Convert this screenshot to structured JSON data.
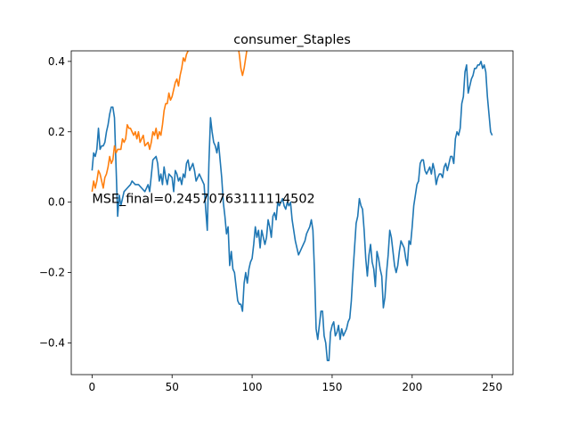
{
  "chart_data": {
    "type": "line",
    "title": "consumer_Staples",
    "xlabel": "",
    "ylabel": "",
    "xlim": [
      -13,
      263
    ],
    "ylim": [
      -0.49,
      0.43
    ],
    "xticks": [
      0,
      50,
      100,
      150,
      200,
      250
    ],
    "yticks": [
      -0.4,
      -0.2,
      0.0,
      0.2,
      0.4
    ],
    "xtick_labels": [
      "0",
      "50",
      "100",
      "150",
      "200",
      "250"
    ],
    "ytick_labels": [
      "−0.4",
      "−0.2",
      "0.0",
      "0.2",
      "0.4"
    ],
    "grid": false,
    "annotation": {
      "text": "MSE_final=0.24570763111114502",
      "x": 0,
      "y": 0.0
    },
    "series": [
      {
        "color": "#1f77b4",
        "points": [
          [
            0,
            0.09
          ],
          [
            1,
            0.14
          ],
          [
            2,
            0.13
          ],
          [
            3,
            0.15
          ],
          [
            4,
            0.21
          ],
          [
            5,
            0.15
          ],
          [
            6,
            0.16
          ],
          [
            7,
            0.16
          ],
          [
            8,
            0.17
          ],
          [
            9,
            0.2
          ],
          [
            10,
            0.22
          ],
          [
            11,
            0.25
          ],
          [
            12,
            0.27
          ],
          [
            13,
            0.27
          ],
          [
            14,
            0.24
          ],
          [
            15,
            0.1
          ],
          [
            16,
            -0.04
          ],
          [
            17,
            0.02
          ],
          [
            18,
            -0.01
          ],
          [
            19,
            0.01
          ],
          [
            20,
            0.03
          ],
          [
            22,
            0.04
          ],
          [
            24,
            0.05
          ],
          [
            25,
            0.06
          ],
          [
            27,
            0.05
          ],
          [
            29,
            0.05
          ],
          [
            31,
            0.04
          ],
          [
            33,
            0.03
          ],
          [
            35,
            0.05
          ],
          [
            36,
            0.03
          ],
          [
            38,
            0.12
          ],
          [
            40,
            0.13
          ],
          [
            41,
            0.11
          ],
          [
            42,
            0.06
          ],
          [
            43,
            0.08
          ],
          [
            44,
            0.05
          ],
          [
            45,
            0.1
          ],
          [
            46,
            0.07
          ],
          [
            47,
            0.05
          ],
          [
            48,
            0.08
          ],
          [
            50,
            0.07
          ],
          [
            51,
            0.03
          ],
          [
            52,
            0.09
          ],
          [
            53,
            0.08
          ],
          [
            54,
            0.06
          ],
          [
            55,
            0.07
          ],
          [
            56,
            0.05
          ],
          [
            57,
            0.08
          ],
          [
            58,
            0.07
          ],
          [
            59,
            0.11
          ],
          [
            60,
            0.12
          ],
          [
            61,
            0.09
          ],
          [
            62,
            0.1
          ],
          [
            63,
            0.11
          ],
          [
            64,
            0.09
          ],
          [
            65,
            0.06
          ],
          [
            66,
            0.07
          ],
          [
            67,
            0.08
          ],
          [
            68,
            0.07
          ],
          [
            69,
            0.06
          ],
          [
            70,
            0.05
          ],
          [
            71,
            -0.02
          ],
          [
            72,
            -0.08
          ],
          [
            73,
            0.11
          ],
          [
            74,
            0.24
          ],
          [
            75,
            0.2
          ],
          [
            76,
            0.17
          ],
          [
            77,
            0.16
          ],
          [
            78,
            0.14
          ],
          [
            79,
            0.17
          ],
          [
            80,
            0.12
          ],
          [
            81,
            0.07
          ],
          [
            82,
            0.0
          ],
          [
            83,
            -0.04
          ],
          [
            84,
            -0.09
          ],
          [
            85,
            -0.07
          ],
          [
            86,
            -0.18
          ],
          [
            87,
            -0.14
          ],
          [
            88,
            -0.19
          ],
          [
            89,
            -0.2
          ],
          [
            90,
            -0.24
          ],
          [
            91,
            -0.28
          ],
          [
            92,
            -0.29
          ],
          [
            93,
            -0.29
          ],
          [
            94,
            -0.31
          ],
          [
            95,
            -0.23
          ],
          [
            96,
            -0.2
          ],
          [
            97,
            -0.23
          ],
          [
            98,
            -0.19
          ],
          [
            99,
            -0.17
          ],
          [
            100,
            -0.16
          ],
          [
            101,
            -0.12
          ],
          [
            102,
            -0.07
          ],
          [
            103,
            -0.1
          ],
          [
            104,
            -0.08
          ],
          [
            105,
            -0.13
          ],
          [
            106,
            -0.08
          ],
          [
            107,
            -0.1
          ],
          [
            108,
            -0.12
          ],
          [
            109,
            -0.1
          ],
          [
            110,
            -0.05
          ],
          [
            111,
            -0.07
          ],
          [
            112,
            -0.1
          ],
          [
            113,
            -0.04
          ],
          [
            114,
            -0.03
          ],
          [
            115,
            -0.05
          ],
          [
            116,
            0.0
          ],
          [
            117,
            -0.01
          ],
          [
            118,
            0.0
          ],
          [
            119,
            0.01
          ],
          [
            120,
            -0.01
          ],
          [
            121,
            -0.02
          ],
          [
            122,
            0.0
          ],
          [
            123,
            -0.01
          ],
          [
            124,
            0.0
          ],
          [
            125,
            -0.05
          ],
          [
            126,
            -0.08
          ],
          [
            127,
            -0.11
          ],
          [
            128,
            -0.13
          ],
          [
            129,
            -0.15
          ],
          [
            130,
            -0.14
          ],
          [
            131,
            -0.13
          ],
          [
            132,
            -0.12
          ],
          [
            133,
            -0.11
          ],
          [
            134,
            -0.09
          ],
          [
            135,
            -0.08
          ],
          [
            136,
            -0.07
          ],
          [
            137,
            -0.05
          ],
          [
            138,
            -0.08
          ],
          [
            139,
            -0.2
          ],
          [
            140,
            -0.36
          ],
          [
            141,
            -0.39
          ],
          [
            142,
            -0.35
          ],
          [
            143,
            -0.31
          ],
          [
            144,
            -0.31
          ],
          [
            145,
            -0.38
          ],
          [
            146,
            -0.4
          ],
          [
            147,
            -0.45
          ],
          [
            148,
            -0.45
          ],
          [
            149,
            -0.37
          ],
          [
            150,
            -0.35
          ],
          [
            151,
            -0.34
          ],
          [
            152,
            -0.38
          ],
          [
            153,
            -0.37
          ],
          [
            154,
            -0.35
          ],
          [
            155,
            -0.39
          ],
          [
            156,
            -0.36
          ],
          [
            157,
            -0.38
          ],
          [
            158,
            -0.37
          ],
          [
            159,
            -0.36
          ],
          [
            160,
            -0.34
          ],
          [
            161,
            -0.33
          ],
          [
            162,
            -0.28
          ],
          [
            163,
            -0.2
          ],
          [
            164,
            -0.13
          ],
          [
            165,
            -0.06
          ],
          [
            166,
            -0.04
          ],
          [
            167,
            0.01
          ],
          [
            168,
            -0.01
          ],
          [
            169,
            -0.02
          ],
          [
            170,
            -0.08
          ],
          [
            171,
            -0.16
          ],
          [
            172,
            -0.21
          ],
          [
            173,
            -0.15
          ],
          [
            174,
            -0.12
          ],
          [
            175,
            -0.17
          ],
          [
            176,
            -0.19
          ],
          [
            177,
            -0.24
          ],
          [
            178,
            -0.14
          ],
          [
            179,
            -0.16
          ],
          [
            180,
            -0.19
          ],
          [
            181,
            -0.21
          ],
          [
            182,
            -0.3
          ],
          [
            183,
            -0.27
          ],
          [
            184,
            -0.2
          ],
          [
            185,
            -0.15
          ],
          [
            186,
            -0.08
          ],
          [
            187,
            -0.1
          ],
          [
            188,
            -0.14
          ],
          [
            189,
            -0.18
          ],
          [
            190,
            -0.2
          ],
          [
            191,
            -0.18
          ],
          [
            192,
            -0.14
          ],
          [
            193,
            -0.11
          ],
          [
            194,
            -0.12
          ],
          [
            195,
            -0.13
          ],
          [
            196,
            -0.16
          ],
          [
            197,
            -0.18
          ],
          [
            198,
            -0.11
          ],
          [
            199,
            -0.12
          ],
          [
            200,
            -0.07
          ],
          [
            201,
            -0.01
          ],
          [
            202,
            0.02
          ],
          [
            203,
            0.05
          ],
          [
            204,
            0.06
          ],
          [
            205,
            0.11
          ],
          [
            206,
            0.12
          ],
          [
            207,
            0.12
          ],
          [
            208,
            0.09
          ],
          [
            209,
            0.08
          ],
          [
            210,
            0.09
          ],
          [
            211,
            0.1
          ],
          [
            212,
            0.08
          ],
          [
            213,
            0.11
          ],
          [
            214,
            0.09
          ],
          [
            215,
            0.05
          ],
          [
            216,
            0.07
          ],
          [
            217,
            0.08
          ],
          [
            218,
            0.08
          ],
          [
            219,
            0.07
          ],
          [
            220,
            0.1
          ],
          [
            221,
            0.11
          ],
          [
            222,
            0.09
          ],
          [
            223,
            0.11
          ],
          [
            224,
            0.13
          ],
          [
            225,
            0.13
          ],
          [
            226,
            0.11
          ],
          [
            227,
            0.18
          ],
          [
            228,
            0.2
          ],
          [
            229,
            0.19
          ],
          [
            230,
            0.21
          ],
          [
            231,
            0.28
          ],
          [
            232,
            0.3
          ],
          [
            233,
            0.37
          ],
          [
            234,
            0.39
          ],
          [
            235,
            0.31
          ],
          [
            236,
            0.33
          ],
          [
            237,
            0.35
          ],
          [
            238,
            0.36
          ],
          [
            239,
            0.38
          ],
          [
            240,
            0.38
          ],
          [
            241,
            0.39
          ],
          [
            242,
            0.39
          ],
          [
            243,
            0.4
          ],
          [
            244,
            0.38
          ],
          [
            245,
            0.39
          ],
          [
            246,
            0.37
          ],
          [
            247,
            0.3
          ],
          [
            248,
            0.25
          ],
          [
            249,
            0.2
          ],
          [
            250,
            0.19
          ]
        ]
      },
      {
        "color": "#ff7f0e",
        "points": [
          [
            0,
            0.03
          ],
          [
            1,
            0.06
          ],
          [
            2,
            0.04
          ],
          [
            3,
            0.06
          ],
          [
            4,
            0.09
          ],
          [
            5,
            0.08
          ],
          [
            6,
            0.06
          ],
          [
            7,
            0.04
          ],
          [
            8,
            0.07
          ],
          [
            9,
            0.08
          ],
          [
            10,
            0.1
          ],
          [
            11,
            0.13
          ],
          [
            12,
            0.11
          ],
          [
            13,
            0.12
          ],
          [
            14,
            0.16
          ],
          [
            15,
            0.14
          ],
          [
            16,
            0.15
          ],
          [
            17,
            0.15
          ],
          [
            18,
            0.15
          ],
          [
            19,
            0.18
          ],
          [
            20,
            0.17
          ],
          [
            21,
            0.18
          ],
          [
            22,
            0.22
          ],
          [
            23,
            0.21
          ],
          [
            24,
            0.21
          ],
          [
            25,
            0.2
          ],
          [
            26,
            0.19
          ],
          [
            27,
            0.2
          ],
          [
            28,
            0.18
          ],
          [
            29,
            0.2
          ],
          [
            30,
            0.17
          ],
          [
            32,
            0.19
          ],
          [
            33,
            0.16
          ],
          [
            35,
            0.17
          ],
          [
            36,
            0.15
          ],
          [
            37,
            0.17
          ],
          [
            38,
            0.2
          ],
          [
            39,
            0.19
          ],
          [
            40,
            0.21
          ],
          [
            41,
            0.18
          ],
          [
            42,
            0.2
          ],
          [
            43,
            0.19
          ],
          [
            44,
            0.22
          ],
          [
            45,
            0.26
          ],
          [
            46,
            0.28
          ],
          [
            47,
            0.28
          ],
          [
            48,
            0.31
          ],
          [
            49,
            0.29
          ],
          [
            50,
            0.3
          ],
          [
            51,
            0.32
          ],
          [
            52,
            0.34
          ],
          [
            53,
            0.35
          ],
          [
            54,
            0.33
          ],
          [
            55,
            0.36
          ],
          [
            56,
            0.38
          ],
          [
            57,
            0.41
          ],
          [
            58,
            0.4
          ],
          [
            59,
            0.42
          ],
          [
            60,
            0.43
          ],
          [
            61,
            0.47
          ],
          [
            90,
            0.5
          ],
          [
            91,
            0.45
          ],
          [
            92,
            0.42
          ],
          [
            93,
            0.38
          ],
          [
            94,
            0.36
          ],
          [
            95,
            0.38
          ],
          [
            96,
            0.41
          ],
          [
            97,
            0.44
          ],
          [
            98,
            0.48
          ]
        ]
      }
    ]
  }
}
